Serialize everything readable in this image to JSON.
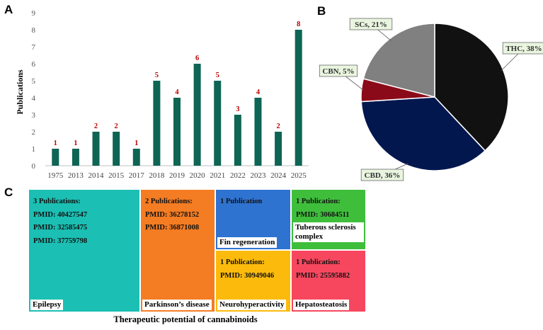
{
  "panels": {
    "a": "A",
    "b": "B",
    "c": "C"
  },
  "chart_data": [
    {
      "type": "bar",
      "title": "",
      "xlabel": "",
      "ylabel": "Publications",
      "ylim": [
        0,
        9
      ],
      "yticks": [
        0,
        1,
        2,
        3,
        4,
        5,
        6,
        7,
        8,
        9
      ],
      "grid": false,
      "categories": [
        "1975",
        "2013",
        "2014",
        "2015",
        "2017",
        "2018",
        "2019",
        "2020",
        "2021",
        "2022",
        "2023",
        "2024",
        "2025"
      ],
      "values": [
        1,
        1,
        2,
        2,
        1,
        5,
        4,
        6,
        5,
        3,
        4,
        2,
        8
      ],
      "bar_color": "#0e6554",
      "label_color": "#c00000"
    },
    {
      "type": "pie",
      "slices": [
        {
          "label": "THC, 38%",
          "name": "THC",
          "value": 38,
          "color": "#111111"
        },
        {
          "label": "CBD, 36%",
          "name": "CBD",
          "value": 36,
          "color": "#03174f"
        },
        {
          "label": "CBN, 5%",
          "name": "CBN",
          "value": 5,
          "color": "#8b0a19"
        },
        {
          "label": "SCs, 21%",
          "name": "SCs",
          "value": 21,
          "color": "#808080"
        }
      ],
      "label_bg": "#eaf5e0"
    },
    {
      "type": "treemap",
      "title": "Therapeutic potential of cannabinoids",
      "cells": [
        {
          "label": "Epilepsy",
          "count": 3,
          "info": [
            "3 Publications:",
            "PMID: 40427547",
            "PMID: 32585475",
            "PMID: 37759798"
          ],
          "color": "#1bbfb3"
        },
        {
          "label": "Parkinson’s disease",
          "count": 2,
          "info": [
            "2 Publications:",
            "PMID: 36278152",
            "PMID: 36871008"
          ],
          "color": "#f47c23"
        },
        {
          "label": "Fin regeneration",
          "count": 1,
          "info": [
            "1 Publication"
          ],
          "color": "#2f73d0"
        },
        {
          "label": "Neurohyperactivity",
          "count": 1,
          "info": [
            "1 Publication:",
            "PMID: 30949046"
          ],
          "color": "#fcbb0c"
        },
        {
          "label": "Tuberous sclerosis complex",
          "count": 1,
          "info": [
            "1 Publication:",
            "PMID: 30684511"
          ],
          "color": "#3fbe3c"
        },
        {
          "label": "Hepatosteatosis",
          "count": 1,
          "info": [
            "1 Publication:",
            "PMID: 25595882"
          ],
          "color": "#f6475e"
        }
      ]
    }
  ]
}
